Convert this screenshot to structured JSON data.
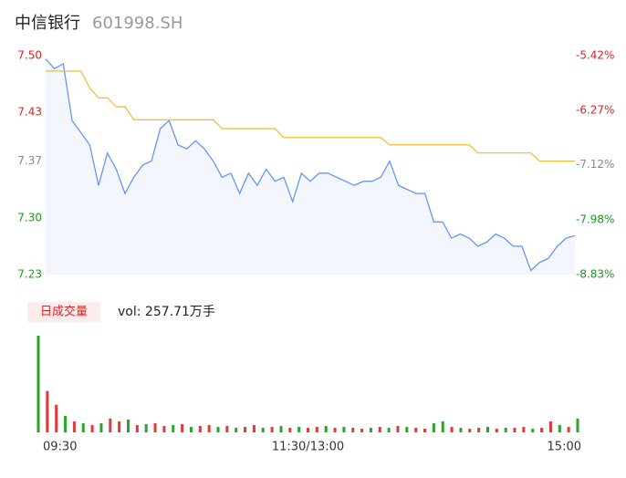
{
  "header": {
    "name": "中信银行",
    "code": "601998.SH"
  },
  "chart_data": [
    {
      "type": "line",
      "x": [
        0,
        4,
        8,
        12,
        16,
        20,
        24,
        28,
        32,
        36,
        40,
        44,
        48,
        52,
        56,
        60,
        64,
        68,
        72,
        76,
        80,
        84,
        88,
        92,
        96,
        100,
        104,
        108,
        112,
        116,
        120,
        124,
        128,
        132,
        136,
        140,
        144,
        148,
        152,
        156,
        160,
        164,
        168,
        172,
        176,
        180,
        184,
        188,
        192,
        196,
        200,
        204,
        208,
        212,
        216,
        220,
        224,
        228,
        232,
        236,
        240
      ],
      "xlim": [
        0,
        240
      ],
      "series": [
        {
          "color": "#5b8ff9",
          "values": [
            7.496,
            7.484,
            7.49,
            7.42,
            7.405,
            7.39,
            7.34,
            7.38,
            7.36,
            7.33,
            7.35,
            7.365,
            7.37,
            7.41,
            7.42,
            7.39,
            7.385,
            7.395,
            7.385,
            7.37,
            7.35,
            7.355,
            7.33,
            7.355,
            7.34,
            7.36,
            7.345,
            7.35,
            7.32,
            7.355,
            7.345,
            7.355,
            7.355,
            7.35,
            7.345,
            7.34,
            7.345,
            7.345,
            7.35,
            7.37,
            7.34,
            7.335,
            7.33,
            7.33,
            7.295,
            7.295,
            7.275,
            7.28,
            7.275,
            7.265,
            7.27,
            7.28,
            7.275,
            7.265,
            7.265,
            7.235,
            7.245,
            7.25,
            7.265,
            7.275,
            7.278
          ]
        },
        {
          "color": "#f5b92e",
          "values": [
            7.481,
            7.481,
            7.481,
            7.481,
            7.481,
            7.46,
            7.448,
            7.448,
            7.437,
            7.437,
            7.421,
            7.421,
            7.421,
            7.421,
            7.421,
            7.421,
            7.421,
            7.421,
            7.421,
            7.421,
            7.41,
            7.41,
            7.41,
            7.41,
            7.41,
            7.41,
            7.41,
            7.399,
            7.399,
            7.399,
            7.399,
            7.399,
            7.399,
            7.399,
            7.399,
            7.399,
            7.399,
            7.399,
            7.399,
            7.39,
            7.39,
            7.39,
            7.39,
            7.39,
            7.39,
            7.39,
            7.39,
            7.39,
            7.39,
            7.38,
            7.38,
            7.38,
            7.38,
            7.38,
            7.38,
            7.38,
            7.37,
            7.37,
            7.37,
            7.37,
            7.37
          ]
        }
      ],
      "ylim": [
        7.23,
        7.5
      ],
      "yticks": [
        {
          "value": 7.5,
          "label": "7.50"
        },
        7.43,
        7.37,
        {
          "value": 7.3,
          "label": "7.30"
        },
        7.23
      ],
      "ytick_colors": [
        "#e02020",
        "#e02020",
        "#888888",
        "#1a9a1a",
        "#1a9a1a"
      ],
      "y2lim": [
        -8.83,
        -5.42
      ],
      "y2ticks": [
        {
          "value": -5.42,
          "label": "-5.42%"
        },
        {
          "value": -6.27,
          "label": "-6.27%"
        },
        {
          "value": -7.12,
          "label": "-7.12%"
        },
        {
          "value": -7.98,
          "label": "-7.98%"
        },
        {
          "value": -8.83,
          "label": "-8.83%"
        }
      ]
    },
    {
      "type": "bar",
      "label": "日成交量",
      "volume_label": "vol: 257.71万手",
      "x": [
        0,
        4,
        8,
        12,
        16,
        20,
        24,
        28,
        32,
        36,
        40,
        44,
        48,
        52,
        56,
        60,
        64,
        68,
        72,
        76,
        80,
        84,
        88,
        92,
        96,
        100,
        104,
        108,
        112,
        116,
        120,
        124,
        128,
        132,
        136,
        140,
        144,
        148,
        152,
        156,
        160,
        164,
        168,
        172,
        176,
        180,
        184,
        188,
        192,
        196,
        200,
        204,
        208,
        212,
        216,
        220,
        224,
        228,
        232,
        236,
        240
      ],
      "xlim": [
        0,
        240
      ],
      "values": [
        105,
        45,
        30,
        18,
        12,
        10,
        8,
        10,
        15,
        12,
        14,
        8,
        9,
        10,
        7,
        8,
        9,
        6,
        7,
        8,
        6,
        7,
        5,
        6,
        8,
        5,
        6,
        7,
        5,
        6,
        5,
        6,
        7,
        5,
        6,
        5,
        4,
        5,
        6,
        5,
        7,
        6,
        5,
        4,
        10,
        12,
        6,
        5,
        4,
        5,
        6,
        4,
        5,
        5,
        6,
        4,
        5,
        12,
        8,
        6,
        15
      ],
      "colors": [
        "#2aa52a",
        "#e23a3a",
        "#e23a3a",
        "#2aa52a",
        "#e23a3a",
        "#2aa52a",
        "#e23a3a",
        "#2aa52a",
        "#e23a3a",
        "#e23a3a",
        "#2aa52a",
        "#e23a3a",
        "#2aa52a",
        "#e23a3a",
        "#e23a3a",
        "#2aa52a",
        "#e23a3a",
        "#2aa52a",
        "#e23a3a",
        "#e23a3a",
        "#2aa52a",
        "#e23a3a",
        "#2aa52a",
        "#e23a3a",
        "#e23a3a",
        "#2aa52a",
        "#e23a3a",
        "#2aa52a",
        "#e23a3a",
        "#2aa52a",
        "#e23a3a",
        "#e23a3a",
        "#2aa52a",
        "#e23a3a",
        "#2aa52a",
        "#e23a3a",
        "#e23a3a",
        "#2aa52a",
        "#e23a3a",
        "#2aa52a",
        "#e23a3a",
        "#2aa52a",
        "#e23a3a",
        "#e23a3a",
        "#2aa52a",
        "#2aa52a",
        "#e23a3a",
        "#2aa52a",
        "#e23a3a",
        "#e23a3a",
        "#2aa52a",
        "#e23a3a",
        "#2aa52a",
        "#e23a3a",
        "#e23a3a",
        "#2aa52a",
        "#e23a3a",
        "#e23a3a",
        "#2aa52a",
        "#e23a3a",
        "#2aa52a"
      ],
      "ylim": [
        0,
        105
      ],
      "xticks": [
        {
          "value": 0,
          "label": "09:30"
        },
        {
          "value": 120,
          "label": "11:30/13:00"
        },
        {
          "value": 240,
          "label": "15:00"
        }
      ]
    }
  ]
}
